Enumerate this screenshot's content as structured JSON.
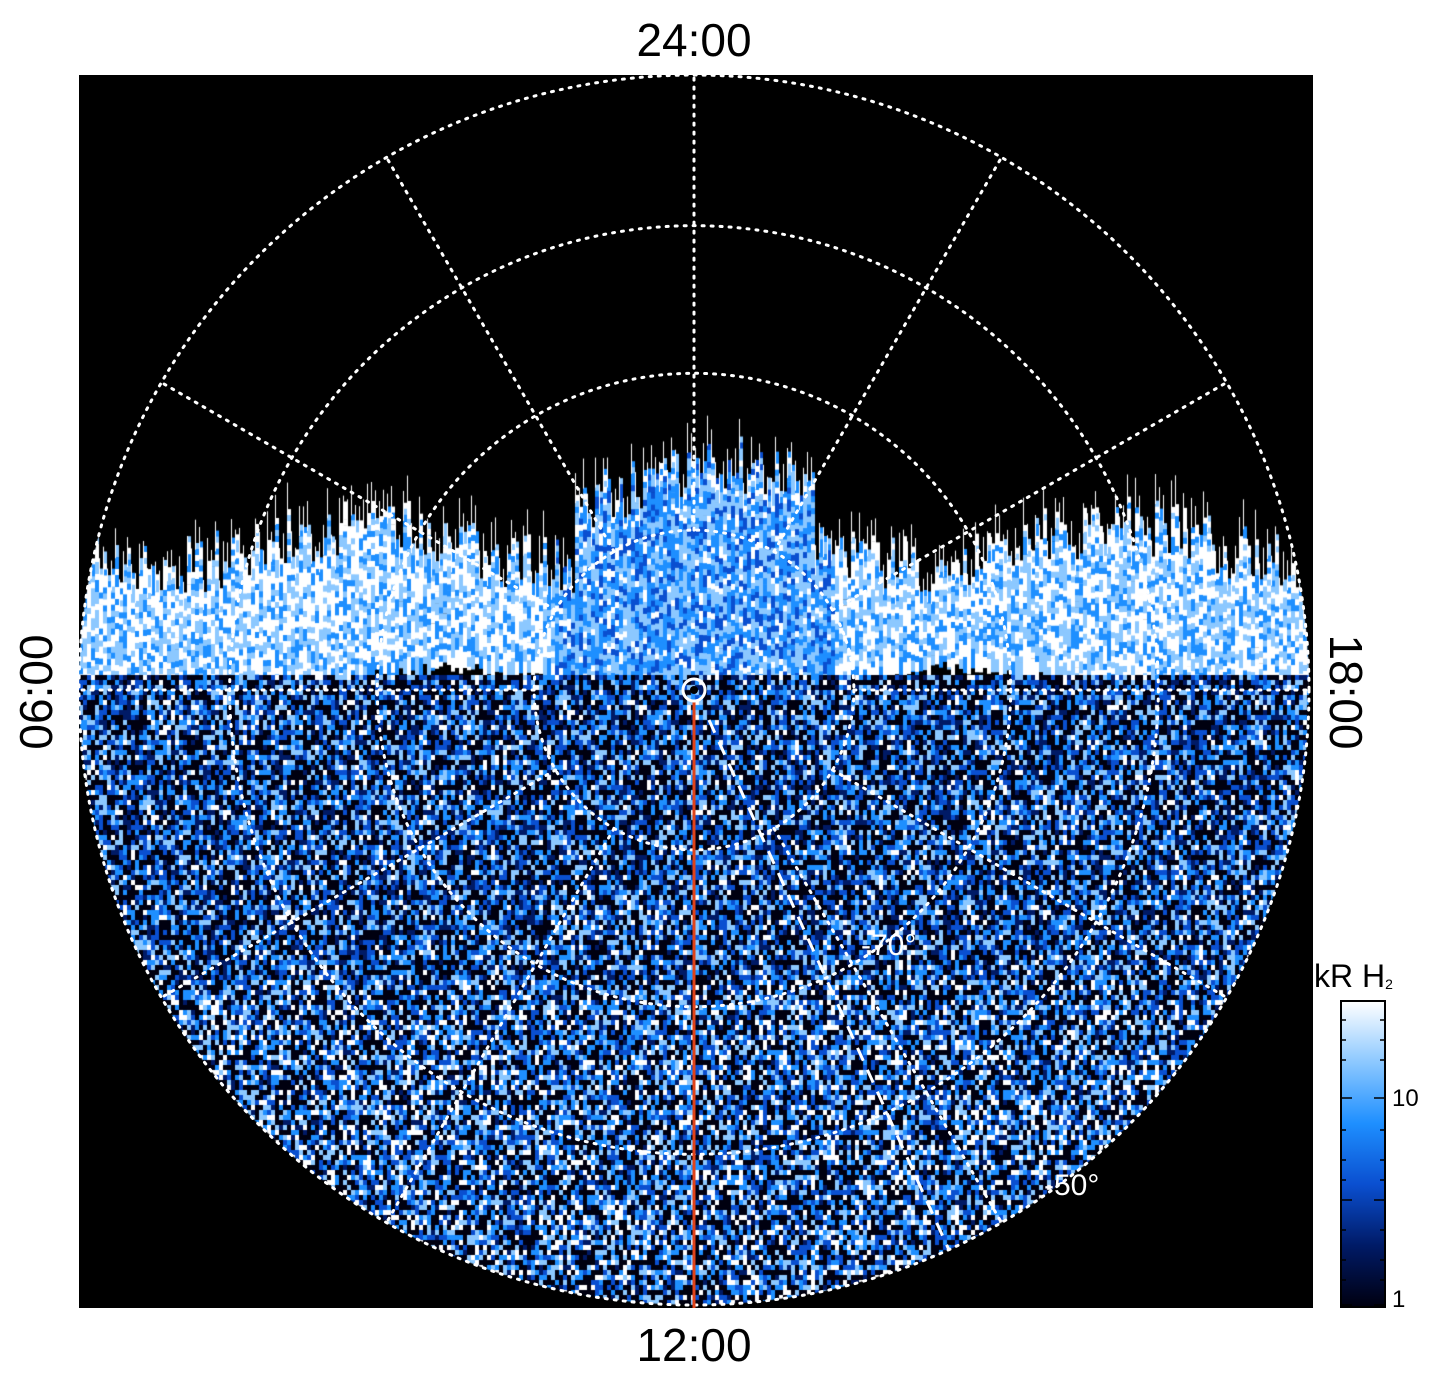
{
  "labels": {
    "top": "24:00",
    "bottom": "12:00",
    "left": "06:00",
    "right": "18:00"
  },
  "latitude_labels": [
    "-70°",
    "-50°"
  ],
  "colorbar": {
    "title": "kR H",
    "title_subscript": "2",
    "ticks": [
      "10",
      "1"
    ],
    "colors": [
      "#000010",
      "#001a66",
      "#0a4fd0",
      "#1e8fff",
      "#8cc8ff",
      "#ffffff"
    ]
  },
  "colors": {
    "background": "#000000",
    "grid": "#ffffff",
    "meridian_line": "#e0431a"
  }
}
